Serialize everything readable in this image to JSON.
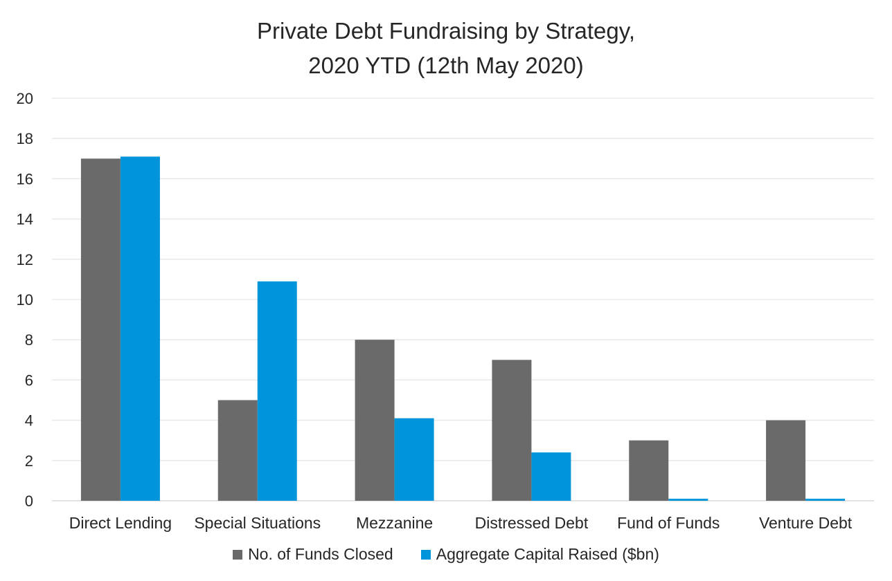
{
  "chart_data": {
    "type": "bar",
    "title_lines": [
      "Private Debt Fundraising by Strategy,",
      "2020 YTD (12th May 2020)"
    ],
    "categories": [
      "Direct Lending",
      "Special Situations",
      "Mezzanine",
      "Distressed Debt",
      "Fund of Funds",
      "Venture Debt"
    ],
    "series": [
      {
        "name": "No. of Funds Closed",
        "color": "#6b6a6a",
        "values": [
          17,
          5,
          8,
          7,
          3,
          4
        ]
      },
      {
        "name": "Aggregate Capital Raised ($bn)",
        "color": "#0095da",
        "values": [
          17.1,
          10.9,
          4.1,
          2.4,
          0.1,
          0.1
        ]
      }
    ],
    "ylim": [
      0,
      20
    ],
    "yticks": [
      "0",
      "2",
      "4",
      "6",
      "8",
      "10",
      "12",
      "14",
      "16",
      "18",
      "20"
    ],
    "grid": true,
    "legend_position": "bottom"
  }
}
